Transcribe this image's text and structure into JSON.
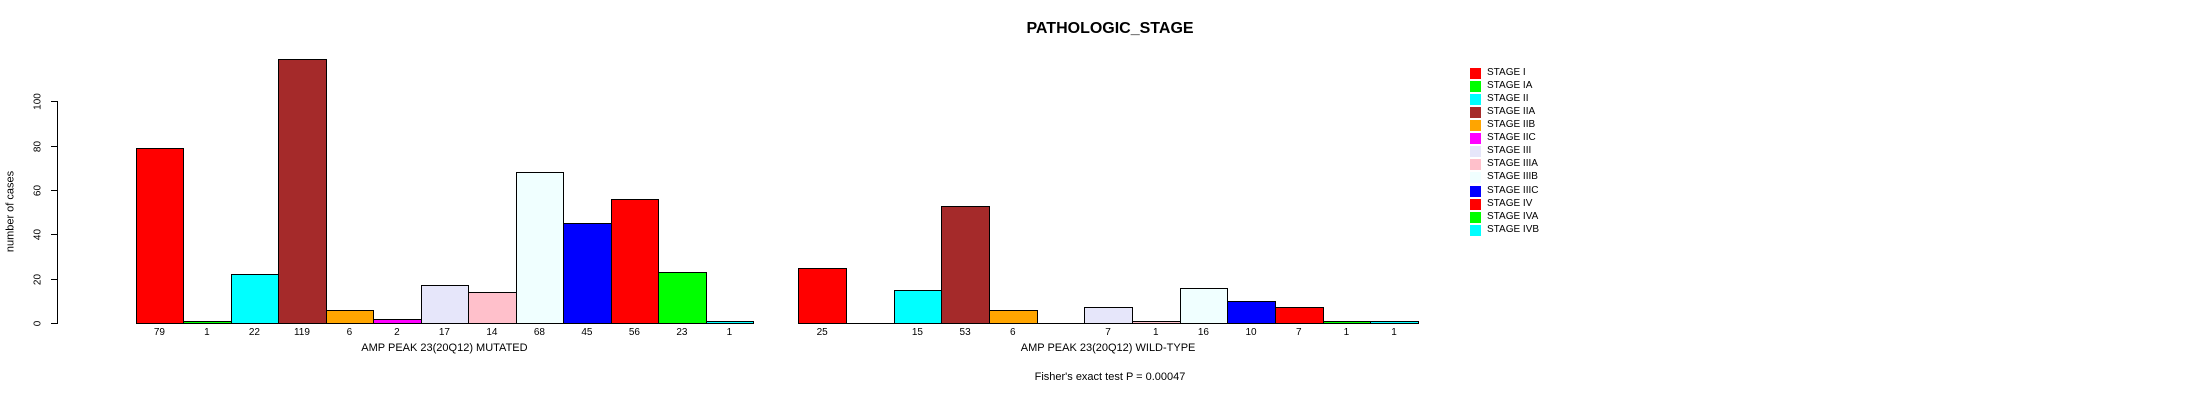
{
  "chart_data": {
    "type": "bar",
    "title": "PATHOLOGIC_STAGE",
    "ylabel": "number of cases",
    "xlabel": "",
    "ylim": [
      0,
      100
    ],
    "yticks": [
      0,
      20,
      40,
      60,
      80,
      100
    ],
    "grid": false,
    "legend_position": "right",
    "categories": [
      "STAGE I",
      "STAGE IA",
      "STAGE II",
      "STAGE IIA",
      "STAGE IIB",
      "STAGE IIC",
      "STAGE III",
      "STAGE IIIA",
      "STAGE IIIB",
      "STAGE IIIC",
      "STAGE IV",
      "STAGE IVA",
      "STAGE IVB"
    ],
    "colors": [
      "#FF0000",
      "#00FF00",
      "#00FFFF",
      "#A52A2A",
      "#FFA500",
      "#FF00FF",
      "#E6E6FA",
      "#FFC0CB",
      "#F0FFFF",
      "#0000FF",
      "#FF0000",
      "#00FF00",
      "#00FFFF"
    ],
    "groups": [
      {
        "name": "AMP PEAK 23(20Q12) MUTATED",
        "values": [
          79,
          1,
          22,
          119,
          6,
          2,
          17,
          14,
          68,
          45,
          56,
          23,
          1
        ]
      },
      {
        "name": "AMP PEAK 23(20Q12) WILD-TYPE",
        "values": [
          25,
          0,
          15,
          53,
          6,
          0,
          7,
          1,
          16,
          10,
          7,
          1,
          1
        ]
      }
    ],
    "annotation": "Fisher's exact test P = 0.00047",
    "bar_border_color": "#000000",
    "background_color": "#FFFFFF",
    "text_color": "#000000"
  }
}
